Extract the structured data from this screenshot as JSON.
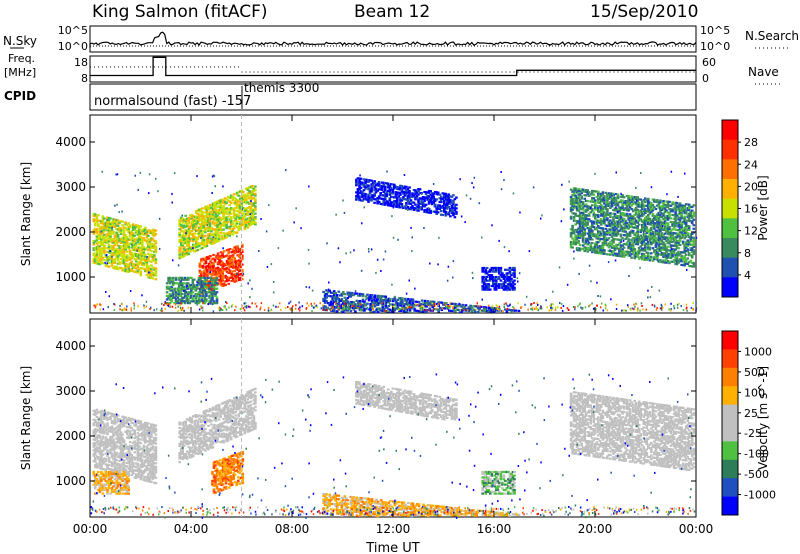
{
  "header": {
    "station": "King Salmon (fitACF)",
    "beam": "Beam 12",
    "date": "15/Sep/2010"
  },
  "strip": {
    "nsky_label": "N.Sky",
    "nsearch_label": "N.Search",
    "nsky_ticks": [
      "10^5",
      "10^0"
    ],
    "freq_label_line1": "Freq.",
    "freq_label_line2": "[MHz]",
    "freq_ticks": [
      "18",
      "8"
    ],
    "nave_label": "Nave",
    "nave_ticks": [
      "60",
      "0"
    ],
    "cpid_label": "CPID",
    "cpid_1": "normalsound (fast) -157",
    "cpid_2": "themis 3300"
  },
  "colors": {
    "power_scale": [
      "#0000ff",
      "#2050b0",
      "#3a8a60",
      "#50c040",
      "#c8e000",
      "#ffb000",
      "#ff7000",
      "#ff3000",
      "#ff0000"
    ],
    "velocity_scale": [
      "#0000ff",
      "#2050c0",
      "#2e7d5a",
      "#50c040",
      "#c0c0c0",
      "#c0c0c0",
      "#ffb000",
      "#ff8000",
      "#ff4000",
      "#ff0000"
    ],
    "ground_scatter": "#bfbfbf"
  },
  "chart_data": [
    {
      "type": "heatmap",
      "panel": "power",
      "ylabel": "Slant Range [km]",
      "y_ticks": [
        "1000",
        "2000",
        "3000",
        "4000"
      ],
      "ylim": [
        200,
        4600
      ],
      "x_ticks": [
        "00:00",
        "04:00",
        "08:00",
        "12:00",
        "16:00",
        "20:00",
        "00:00"
      ],
      "xlim_hours": [
        0,
        24
      ],
      "colorbar_label": "Power [dB]",
      "colorbar_ticks": [
        "4",
        "8",
        "12",
        "16",
        "20",
        "24",
        "28"
      ],
      "regions": [
        {
          "t0": 0.1,
          "t1": 2.6,
          "r0": 1300,
          "r1": 2400,
          "level": 4,
          "slope": -150
        },
        {
          "t0": 3.5,
          "t1": 6.5,
          "r0": 1400,
          "r1": 2300,
          "level": 4,
          "slope": 250
        },
        {
          "t0": 4.3,
          "t1": 6.0,
          "r0": 600,
          "r1": 1400,
          "level": 7,
          "slope": 200
        },
        {
          "t0": 3.0,
          "t1": 5.0,
          "r0": 400,
          "r1": 1000,
          "level": 2,
          "slope": 0
        },
        {
          "t0": 9.2,
          "t1": 17.0,
          "r0": 250,
          "r1": 700,
          "level": 1,
          "slope": -60
        },
        {
          "t0": 10.5,
          "t1": 14.5,
          "r0": 2700,
          "r1": 3200,
          "level": 0,
          "slope": -100
        },
        {
          "t0": 15.5,
          "t1": 16.8,
          "r0": 700,
          "r1": 1200,
          "level": 0,
          "slope": 0
        },
        {
          "t0": 19.0,
          "t1": 23.9,
          "r0": 1600,
          "r1": 3000,
          "level": 2,
          "slope": -80
        }
      ]
    },
    {
      "type": "heatmap",
      "panel": "velocity",
      "ylabel": "Slant Range [km]",
      "y_ticks": [
        "1000",
        "2000",
        "3000",
        "4000"
      ],
      "ylim": [
        200,
        4600
      ],
      "x_ticks": [
        "00:00",
        "04:00",
        "08:00",
        "12:00",
        "16:00",
        "20:00",
        "00:00"
      ],
      "xlim_hours": [
        0,
        24
      ],
      "xlabel": "Time UT",
      "colorbar_label": "Velocity [m s^-1]",
      "colorbar_ticks": [
        "1000",
        "500",
        "100",
        "25",
        "-25",
        "-100",
        "-500",
        "-1000"
      ],
      "regions": [
        {
          "t0": 0.1,
          "t1": 2.6,
          "r0": 1300,
          "r1": 2600,
          "level": 4,
          "slope": -150
        },
        {
          "t0": 3.5,
          "t1": 6.5,
          "r0": 1400,
          "r1": 2300,
          "level": 4,
          "slope": 250
        },
        {
          "t0": 4.8,
          "t1": 6.0,
          "r0": 700,
          "r1": 1400,
          "level": 7,
          "slope": 200
        },
        {
          "t0": 0.1,
          "t1": 1.5,
          "r0": 700,
          "r1": 1200,
          "level": 6,
          "slope": 0
        },
        {
          "t0": 9.2,
          "t1": 17.0,
          "r0": 250,
          "r1": 700,
          "level": 6,
          "slope": -60
        },
        {
          "t0": 10.5,
          "t1": 14.5,
          "r0": 2700,
          "r1": 3200,
          "level": 4,
          "slope": -100
        },
        {
          "t0": 15.5,
          "t1": 16.8,
          "r0": 700,
          "r1": 1200,
          "level": 3,
          "slope": 0
        },
        {
          "t0": 19.0,
          "t1": 23.9,
          "r0": 1600,
          "r1": 3000,
          "level": 4,
          "slope": -80
        }
      ]
    }
  ]
}
